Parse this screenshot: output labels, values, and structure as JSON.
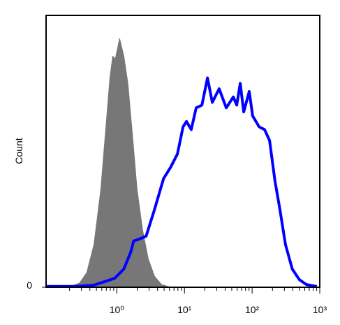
{
  "chart_data": {
    "type": "line",
    "xlabel": null,
    "ylabel": "Count",
    "xscale": "log",
    "xlim": [
      0.09,
      1000
    ],
    "ylim": [
      0,
      100
    ],
    "xticks": [
      {
        "value": 1,
        "label": "10⁰"
      },
      {
        "value": 10,
        "label": "10¹"
      },
      {
        "value": 100,
        "label": "10²"
      },
      {
        "value": 1000,
        "label": "10³"
      }
    ],
    "xminorticks": [
      0.2,
      0.3,
      0.4,
      0.5,
      0.6,
      0.7,
      0.8,
      0.9,
      2,
      3,
      4,
      5,
      6,
      7,
      8,
      9,
      20,
      30,
      40,
      50,
      60,
      70,
      80,
      90,
      200,
      300,
      400,
      500,
      600,
      700,
      800,
      900
    ],
    "yticks": [
      0
    ],
    "series": [
      {
        "color": "#777777",
        "fill": true,
        "x": [
          0.09,
          0.2,
          0.28,
          0.36,
          0.46,
          0.58,
          0.68,
          0.79,
          0.87,
          0.95,
          1.1,
          1.27,
          1.46,
          1.69,
          1.99,
          2.41,
          2.91,
          3.6,
          4.57,
          6.2
        ],
        "values": [
          0,
          0.3,
          1.5,
          5.4,
          15.7,
          36,
          57,
          77,
          85,
          84,
          91.5,
          85,
          75,
          57,
          36,
          21,
          10.5,
          4.1,
          1,
          0
        ]
      },
      {
        "color": "#0000ff",
        "fill": false,
        "x": [
          0.09,
          0.25,
          0.46,
          0.65,
          0.93,
          1.27,
          1.61,
          1.77,
          2.14,
          2.71,
          3.6,
          4.91,
          6.2,
          7.87,
          9.53,
          10.7,
          12.6,
          14.9,
          18.1,
          21.9,
          25.8,
          32.6,
          41.5,
          52.7,
          59.3,
          66.7,
          75.1,
          90.8,
          102,
          127,
          153,
          181,
          218,
          258,
          311,
          392,
          500,
          635,
          906
        ],
        "values": [
          0.3,
          0.3,
          0.8,
          2,
          3.3,
          6.7,
          13,
          17,
          17.7,
          18.8,
          28.5,
          40,
          44,
          49,
          59,
          61,
          58,
          66,
          67,
          77,
          68,
          73,
          66,
          70,
          67,
          75,
          64.5,
          72,
          63,
          59,
          58,
          54,
          39,
          28.5,
          15.7,
          6.7,
          2.8,
          1,
          0.3
        ]
      }
    ]
  }
}
